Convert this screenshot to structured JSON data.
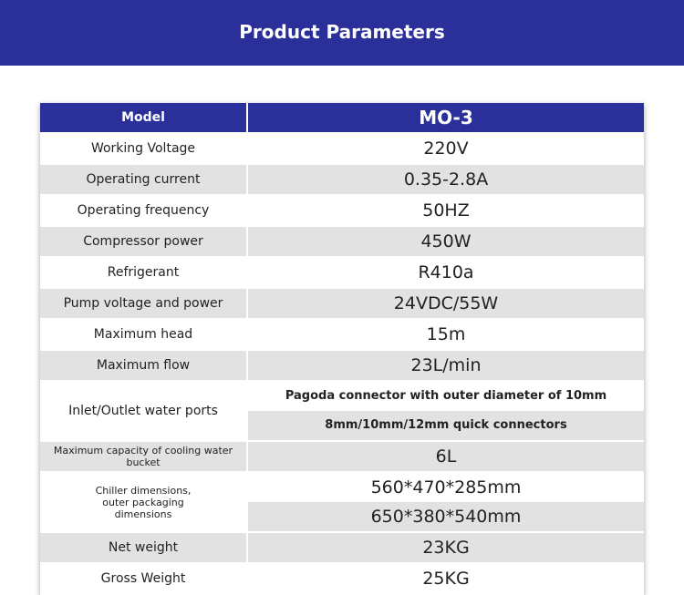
{
  "header": {
    "title": "Product Parameters"
  },
  "table": {
    "header": {
      "label": "Model",
      "value": "MO-3"
    },
    "rows": [
      {
        "label": [
          "Working Voltage"
        ],
        "values": [
          "220V"
        ]
      },
      {
        "label": [
          "Operating current"
        ],
        "values": [
          "0.35-2.8A"
        ]
      },
      {
        "label": [
          "Operating frequency"
        ],
        "values": [
          "50HZ"
        ]
      },
      {
        "label": [
          "Compressor power"
        ],
        "values": [
          "450W"
        ]
      },
      {
        "label": [
          "Refrigerant"
        ],
        "values": [
          "R410a"
        ]
      },
      {
        "label": [
          "Pump voltage and power"
        ],
        "values": [
          "24VDC/55W"
        ]
      },
      {
        "label": [
          "Maximum head"
        ],
        "values": [
          "15m"
        ]
      },
      {
        "label": [
          "Maximum flow"
        ],
        "values": [
          "23L/min"
        ]
      },
      {
        "label": [
          "Inlet/Outlet water ports"
        ],
        "values": [
          "Pagoda connector with outer diameter of 10mm",
          "8mm/10mm/12mm quick connectors"
        ]
      },
      {
        "label": [
          "Maximum capacity of cooling water bucket"
        ],
        "values": [
          "6L"
        ]
      },
      {
        "label": [
          "Chiller dimensions,",
          "outer packaging",
          "dimensions"
        ],
        "values": [
          "560*470*285mm",
          "650*380*540mm"
        ]
      },
      {
        "label": [
          "Net weight"
        ],
        "values": [
          "23KG"
        ]
      },
      {
        "label": [
          "Gross Weight"
        ],
        "values": [
          "25KG"
        ]
      }
    ]
  }
}
